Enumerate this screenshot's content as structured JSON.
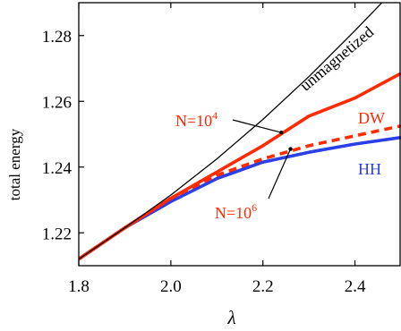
{
  "chart_data": {
    "type": "line",
    "xlabel": "λ",
    "ylabel": "total energy",
    "xlim": [
      1.8,
      2.5
    ],
    "ylim": [
      1.21,
      1.29
    ],
    "xticks": [
      "1.8",
      "2.0",
      "2.2",
      "2.4"
    ],
    "yticks": [
      "1.22",
      "1.24",
      "1.26",
      "1.28"
    ],
    "xtick_values": [
      1.8,
      2.0,
      2.2,
      2.4
    ],
    "ytick_values": [
      1.22,
      1.24,
      1.26,
      1.28
    ],
    "grid": false,
    "series": [
      {
        "name": "unmagnetized",
        "color": "#000000",
        "style": "solid",
        "x": [
          1.8,
          1.9,
          2.0,
          2.1,
          2.2,
          2.3,
          2.4,
          2.5
        ],
        "y": [
          1.212,
          1.2215,
          1.2315,
          1.2425,
          1.2545,
          1.2675,
          1.2815,
          1.296
        ]
      },
      {
        "name": "DW",
        "color": "#ff2a00",
        "style": "solid",
        "x": [
          1.8,
          1.9,
          2.0,
          2.1,
          2.2,
          2.3,
          2.4,
          2.5
        ],
        "y": [
          1.212,
          1.2215,
          1.2305,
          1.2385,
          1.2465,
          1.2555,
          1.261,
          1.2685
        ]
      },
      {
        "name": "",
        "color": "#ff2a00",
        "style": "dashed",
        "x": [
          1.8,
          1.9,
          2.0,
          2.1,
          2.2,
          2.3,
          2.4,
          2.5
        ],
        "y": [
          1.212,
          1.2215,
          1.2305,
          1.2375,
          1.2425,
          1.2465,
          1.2495,
          1.2525
        ]
      },
      {
        "name": "HH",
        "color": "#2a3fe6",
        "style": "solid",
        "x": [
          1.8,
          1.9,
          2.0,
          2.1,
          2.2,
          2.3,
          2.4,
          2.5
        ],
        "y": [
          1.212,
          1.2215,
          1.2295,
          1.2365,
          1.2415,
          1.2445,
          1.247,
          1.249
        ]
      }
    ],
    "annotations": [
      {
        "text": "N=10",
        "sup": "4",
        "color": "#ff2a00",
        "point": [
          2.24,
          1.2505
        ]
      },
      {
        "text": "N=10",
        "sup": "6",
        "color": "#ff2a00",
        "point": [
          2.26,
          1.2455
        ]
      }
    ]
  }
}
